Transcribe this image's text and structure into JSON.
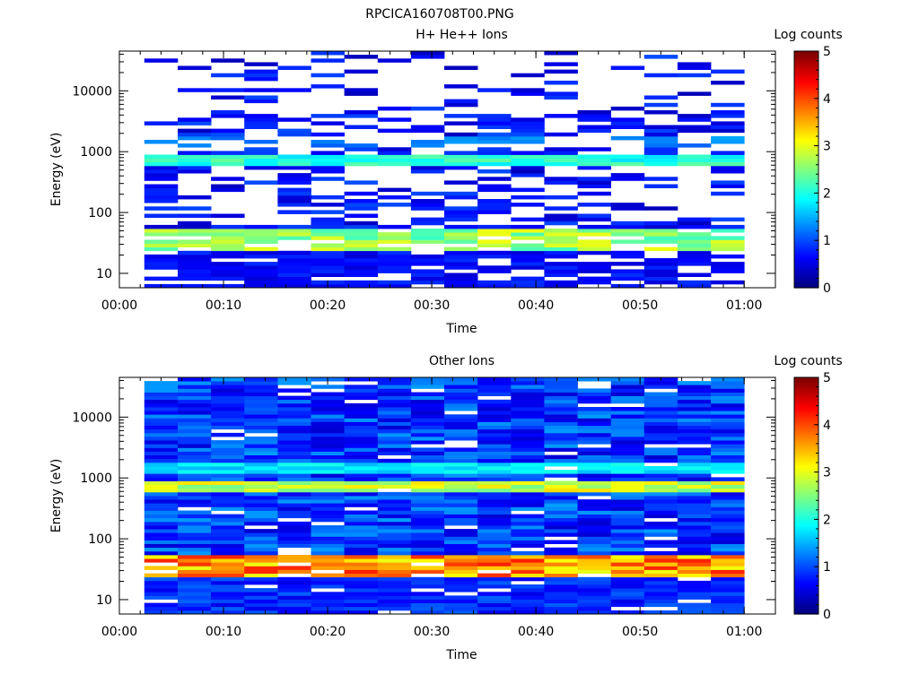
{
  "title": "RPCICA160708T00.PNG",
  "chart_data": [
    {
      "type": "heatmap",
      "title": "H+ He++ Ions",
      "xlabel": "Time",
      "ylabel": "Energy (eV)",
      "x_ticks": [
        "00:00",
        "00:10",
        "00:20",
        "00:30",
        "00:40",
        "00:50",
        "01:00"
      ],
      "xlim_minutes": [
        0,
        63
      ],
      "y_ticks": [
        "10",
        "100",
        "1000",
        "10000"
      ],
      "y_scale": "log",
      "ylim": [
        5.8,
        45000
      ],
      "colorbar": {
        "label": "Log counts",
        "ticks": [
          "0",
          "1",
          "2",
          "3",
          "4",
          "5"
        ],
        "range": [
          0,
          5
        ]
      },
      "time_bins_minutes": [
        2.4,
        5.6,
        8.8,
        12.0,
        15.2,
        18.4,
        21.6,
        24.8,
        28.0,
        31.2,
        34.4,
        37.6,
        40.8,
        44.0,
        47.2,
        50.4,
        53.6,
        56.8,
        60.0
      ],
      "density": "sparse"
    },
    {
      "type": "heatmap",
      "title": "Other Ions",
      "xlabel": "Time",
      "ylabel": "Energy (eV)",
      "x_ticks": [
        "00:00",
        "00:10",
        "00:20",
        "00:30",
        "00:40",
        "00:50",
        "01:00"
      ],
      "xlim_minutes": [
        0,
        63
      ],
      "y_ticks": [
        "10",
        "100",
        "1000",
        "10000"
      ],
      "y_scale": "log",
      "ylim": [
        5.8,
        45000
      ],
      "colorbar": {
        "label": "Log counts",
        "ticks": [
          "0",
          "1",
          "2",
          "3",
          "4",
          "5"
        ],
        "range": [
          0,
          5
        ]
      },
      "time_bins_minutes": [
        2.4,
        5.6,
        8.8,
        12.0,
        15.2,
        18.4,
        21.6,
        24.8,
        28.0,
        31.2,
        34.4,
        37.6,
        40.8,
        44.0,
        47.2,
        50.4,
        53.6,
        56.8,
        60.0
      ],
      "density": "dense"
    }
  ]
}
